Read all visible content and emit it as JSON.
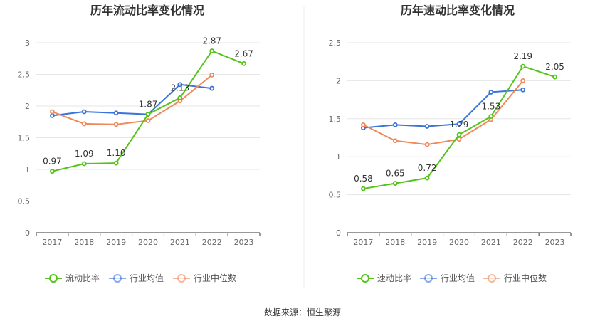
{
  "source_text": "数据来源：恒生聚源",
  "colors": {
    "company": "#52c41a",
    "industry_avg": "#3a73d9",
    "industry_median": "#f0895a",
    "grid": "#e6e6e6",
    "axis": "#333333"
  },
  "chart_data": [
    {
      "type": "line",
      "title": "历年流动比率变化情况",
      "x": [
        "2017",
        "2018",
        "2019",
        "2020",
        "2021",
        "2022",
        "2023"
      ],
      "ylim": [
        0,
        3
      ],
      "yticks": [
        "0",
        "0.5",
        "1",
        "1.5",
        "2",
        "2.5",
        "3"
      ],
      "ytick_values": [
        0,
        0.5,
        1,
        1.5,
        2,
        2.5,
        3
      ],
      "grid": true,
      "legend_placement": "bottom",
      "series": [
        {
          "name": "流动比率",
          "values": [
            0.97,
            1.09,
            1.1,
            1.87,
            2.13,
            2.87,
            2.67
          ],
          "labels": [
            "0.97",
            "1.09",
            "1.10",
            "1.87",
            "2.13",
            "2.87",
            "2.67"
          ]
        },
        {
          "name": "行业均值",
          "values": [
            1.85,
            1.91,
            1.89,
            1.87,
            2.34,
            2.28,
            null
          ]
        },
        {
          "name": "行业中位数",
          "values": [
            1.91,
            1.72,
            1.71,
            1.77,
            2.08,
            2.49,
            null
          ]
        }
      ]
    },
    {
      "type": "line",
      "title": "历年速动比率变化情况",
      "x": [
        "2017",
        "2018",
        "2019",
        "2020",
        "2021",
        "2022",
        "2023"
      ],
      "ylim": [
        0,
        2.5
      ],
      "yticks": [
        "0",
        "0.5",
        "1",
        "1.5",
        "2",
        "2.5"
      ],
      "ytick_values": [
        0,
        0.5,
        1,
        1.5,
        2,
        2.5
      ],
      "grid": true,
      "legend_placement": "bottom",
      "series": [
        {
          "name": "速动比率",
          "values": [
            0.58,
            0.65,
            0.72,
            1.29,
            1.53,
            2.19,
            2.05
          ],
          "labels": [
            "0.58",
            "0.65",
            "0.72",
            "1.29",
            "1.53",
            "2.19",
            "2.05"
          ]
        },
        {
          "name": "行业均值",
          "values": [
            1.38,
            1.42,
            1.4,
            1.43,
            1.85,
            1.88,
            null
          ]
        },
        {
          "name": "行业中位数",
          "values": [
            1.42,
            1.21,
            1.16,
            1.23,
            1.49,
            2.0,
            null
          ]
        }
      ]
    }
  ]
}
